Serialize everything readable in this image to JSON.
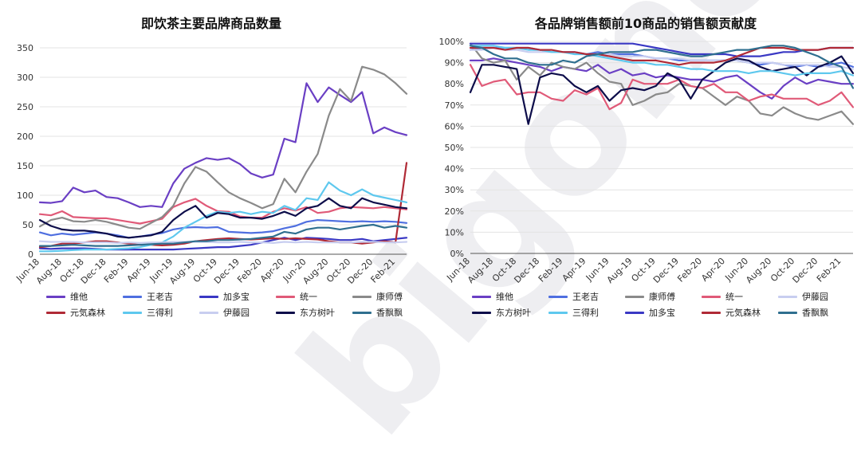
{
  "watermark": "bigone",
  "chart_data": [
    {
      "type": "line",
      "title": "即饮茶主要品牌商品数量",
      "x": [
        "Jun-18",
        "Jul-18",
        "Aug-18",
        "Sep-18",
        "Oct-18",
        "Nov-18",
        "Dec-18",
        "Jan-19",
        "Feb-19",
        "Mar-19",
        "Apr-19",
        "May-19",
        "Jun-19",
        "Jul-19",
        "Aug-19",
        "Sep-19",
        "Oct-19",
        "Nov-19",
        "Dec-19",
        "Jan-20",
        "Feb-20",
        "Mar-20",
        "Apr-20",
        "May-20",
        "Jun-20",
        "Jul-20",
        "Aug-20",
        "Sep-20",
        "Oct-20",
        "Nov-20",
        "Dec-20",
        "Jan-21",
        "Feb-21",
        "Mar-21"
      ],
      "x_tick_labels": [
        "Jun-18",
        "Aug-18",
        "Oct-18",
        "Dec-18",
        "Feb-19",
        "Apr-19",
        "Jun-19",
        "Aug-19",
        "Oct-19",
        "Dec-19",
        "Feb-20",
        "Apr-20",
        "Jun-20",
        "Aug-20",
        "Oct-20",
        "Dec-20",
        "Feb-21"
      ],
      "ylim": [
        0,
        350
      ],
      "y_ticks": [
        0,
        50,
        100,
        150,
        200,
        250,
        300,
        350
      ],
      "xlabel": "",
      "ylabel": "",
      "series": [
        {
          "name": "维他",
          "color": "#6a3fc4",
          "values": [
            88,
            87,
            90,
            113,
            105,
            108,
            97,
            95,
            88,
            80,
            82,
            80,
            120,
            145,
            155,
            163,
            160,
            163,
            153,
            137,
            130,
            135,
            196,
            190,
            290,
            258,
            283,
            270,
            258,
            275,
            205,
            215,
            207,
            202
          ]
        },
        {
          "name": "王老吉",
          "color": "#4f6fe0",
          "values": [
            37,
            32,
            35,
            33,
            35,
            37,
            35,
            32,
            28,
            30,
            33,
            36,
            42,
            45,
            46,
            45,
            46,
            38,
            37,
            36,
            37,
            39,
            44,
            48,
            55,
            58,
            57,
            56,
            55,
            56,
            55,
            56,
            55,
            53
          ]
        },
        {
          "name": "加多宝",
          "color": "#3a38c4",
          "values": [
            10,
            9,
            10,
            10,
            10,
            9,
            8,
            8,
            8,
            8,
            8,
            8,
            8,
            9,
            10,
            11,
            12,
            12,
            14,
            16,
            20,
            24,
            28,
            24,
            28,
            27,
            26,
            24,
            24,
            26,
            22,
            24,
            26,
            28
          ]
        },
        {
          "name": "统一",
          "color": "#e05a78",
          "values": [
            68,
            66,
            73,
            63,
            62,
            61,
            61,
            58,
            55,
            52,
            56,
            60,
            80,
            88,
            94,
            82,
            73,
            72,
            64,
            62,
            62,
            72,
            78,
            74,
            80,
            70,
            72,
            78,
            80,
            79,
            78,
            80,
            78,
            76
          ]
        },
        {
          "name": "康师傅",
          "color": "#8a8a8a",
          "values": [
            47,
            58,
            62,
            56,
            55,
            58,
            55,
            50,
            45,
            43,
            53,
            63,
            82,
            120,
            148,
            140,
            122,
            105,
            95,
            87,
            78,
            85,
            128,
            105,
            140,
            170,
            235,
            280,
            260,
            318,
            313,
            305,
            290,
            272
          ]
        },
        {
          "name": "元気森林",
          "color": "#b02a36",
          "values": [
            12,
            14,
            18,
            18,
            20,
            22,
            22,
            20,
            18,
            16,
            16,
            15,
            16,
            18,
            22,
            24,
            26,
            27,
            26,
            25,
            26,
            27,
            26,
            27,
            26,
            25,
            22,
            20,
            20,
            18,
            20,
            22,
            20,
            155
          ]
        },
        {
          "name": "三得利",
          "color": "#5ec8ee",
          "values": [
            5,
            5,
            6,
            7,
            8,
            8,
            8,
            9,
            10,
            12,
            16,
            20,
            30,
            45,
            55,
            65,
            72,
            70,
            72,
            68,
            72,
            70,
            82,
            75,
            95,
            92,
            122,
            108,
            100,
            110,
            100,
            96,
            92,
            88
          ]
        },
        {
          "name": "伊藤园",
          "color": "#c8cef0",
          "values": [
            22,
            21,
            21,
            21,
            20,
            20,
            20,
            19,
            20,
            19,
            20,
            20,
            21,
            21,
            21,
            21,
            20,
            20,
            21,
            20,
            20,
            19,
            21,
            20,
            21,
            20,
            20,
            20,
            20,
            21,
            21,
            20,
            20,
            21
          ]
        },
        {
          "name": "东方树叶",
          "color": "#0d0d4a",
          "values": [
            58,
            48,
            42,
            40,
            40,
            38,
            35,
            30,
            28,
            30,
            32,
            38,
            58,
            72,
            82,
            62,
            70,
            68,
            62,
            62,
            60,
            65,
            72,
            65,
            78,
            82,
            95,
            82,
            78,
            95,
            88,
            84,
            80,
            78
          ]
        },
        {
          "name": "香飘飘",
          "color": "#2f6f8f",
          "values": [
            14,
            14,
            15,
            16,
            15,
            14,
            14,
            14,
            15,
            16,
            17,
            18,
            18,
            20,
            22,
            22,
            24,
            24,
            25,
            26,
            28,
            30,
            38,
            35,
            42,
            45,
            45,
            42,
            45,
            48,
            50,
            45,
            48,
            45
          ]
        }
      ],
      "legend": {
        "placement": "bottom",
        "columns": 5
      }
    },
    {
      "type": "line",
      "title": "各品牌销售额前10商品的销售额贡献度",
      "x": [
        "Jun-18",
        "Jul-18",
        "Aug-18",
        "Sep-18",
        "Oct-18",
        "Nov-18",
        "Dec-18",
        "Jan-19",
        "Feb-19",
        "Mar-19",
        "Apr-19",
        "May-19",
        "Jun-19",
        "Jul-19",
        "Aug-19",
        "Sep-19",
        "Oct-19",
        "Nov-19",
        "Dec-19",
        "Jan-20",
        "Feb-20",
        "Mar-20",
        "Apr-20",
        "May-20",
        "Jun-20",
        "Jul-20",
        "Aug-20",
        "Sep-20",
        "Oct-20",
        "Nov-20",
        "Dec-20",
        "Jan-21",
        "Feb-21",
        "Mar-21"
      ],
      "x_tick_labels": [
        "Jun-18",
        "Aug-18",
        "Oct-18",
        "Dec-18",
        "Feb-19",
        "Apr-19",
        "Jun-19",
        "Aug-19",
        "Oct-19",
        "Dec-19",
        "Feb-20",
        "Apr-20",
        "Jun-20",
        "Aug-20",
        "Oct-20",
        "Dec-20",
        "Feb-21"
      ],
      "ylim": [
        0,
        100
      ],
      "y_ticks": [
        "0%",
        "10%",
        "20%",
        "30%",
        "40%",
        "50%",
        "60%",
        "70%",
        "80%",
        "90%",
        "100%"
      ],
      "xlabel": "",
      "ylabel": "",
      "series": [
        {
          "name": "维他",
          "color": "#6a3fc4",
          "values": [
            91,
            91,
            92,
            91,
            90,
            89,
            88,
            86,
            88,
            87,
            86,
            89,
            85,
            87,
            84,
            85,
            83,
            84,
            83,
            82,
            82,
            81,
            83,
            84,
            80,
            76,
            73,
            79,
            83,
            80,
            82,
            81,
            80,
            80
          ]
        },
        {
          "name": "王老吉",
          "color": "#4f6fe0",
          "values": [
            96,
            97,
            97,
            97,
            97,
            97,
            96,
            95,
            95,
            95,
            94,
            95,
            94,
            94,
            94,
            93,
            92,
            92,
            91,
            91,
            91,
            91,
            91,
            91,
            90,
            89,
            90,
            89,
            88,
            89,
            88,
            89,
            90,
            88
          ]
        },
        {
          "name": "康师傅",
          "color": "#8a8a8a",
          "values": [
            99,
            92,
            90,
            91,
            82,
            88,
            84,
            90,
            88,
            87,
            90,
            85,
            81,
            80,
            70,
            72,
            75,
            76,
            80,
            79,
            78,
            74,
            70,
            74,
            72,
            66,
            65,
            69,
            66,
            64,
            63,
            65,
            67,
            61
          ]
        },
        {
          "name": "统一",
          "color": "#e05a78",
          "values": [
            89,
            79,
            81,
            82,
            75,
            76,
            76,
            73,
            72,
            77,
            75,
            78,
            68,
            71,
            82,
            80,
            80,
            80,
            82,
            79,
            78,
            80,
            76,
            76,
            72,
            74,
            75,
            73,
            73,
            73,
            70,
            72,
            76,
            69
          ]
        },
        {
          "name": "伊藤园",
          "color": "#c8cef0",
          "values": [
            96,
            96,
            97,
            96,
            96,
            95,
            95,
            95,
            95,
            94,
            94,
            94,
            94,
            93,
            93,
            93,
            92,
            92,
            92,
            91,
            91,
            91,
            91,
            91,
            90,
            90,
            90,
            89,
            89,
            89,
            89,
            88,
            88,
            87
          ]
        },
        {
          "name": "东方树叶",
          "color": "#0d0d4a",
          "values": [
            76,
            89,
            89,
            88,
            87,
            61,
            83,
            85,
            84,
            79,
            76,
            79,
            72,
            77,
            78,
            77,
            79,
            85,
            82,
            73,
            82,
            86,
            90,
            92,
            91,
            88,
            86,
            87,
            88,
            84,
            88,
            90,
            93,
            85
          ]
        },
        {
          "name": "三得利",
          "color": "#5ec8ee",
          "values": [
            98,
            98,
            98,
            97,
            97,
            96,
            96,
            95,
            95,
            94,
            94,
            93,
            92,
            91,
            90,
            90,
            89,
            89,
            88,
            87,
            87,
            86,
            86,
            86,
            85,
            86,
            86,
            85,
            84,
            85,
            85,
            85,
            86,
            84
          ]
        },
        {
          "name": "加多宝",
          "color": "#3a38c4",
          "values": [
            99,
            99,
            99,
            99,
            99,
            99,
            99,
            99,
            99,
            99,
            99,
            99,
            99,
            99,
            99,
            98,
            97,
            96,
            95,
            94,
            94,
            94,
            94,
            93,
            93,
            93,
            94,
            95,
            95,
            96,
            96,
            97,
            97,
            97
          ]
        },
        {
          "name": "元気森林",
          "color": "#b02a36",
          "values": [
            97,
            97,
            97,
            96,
            97,
            97,
            96,
            96,
            95,
            95,
            94,
            94,
            93,
            92,
            91,
            91,
            91,
            90,
            89,
            90,
            90,
            90,
            91,
            93,
            95,
            97,
            97,
            97,
            96,
            96,
            96,
            97,
            97,
            97
          ]
        },
        {
          "name": "香飘飘",
          "color": "#2f6f8f",
          "values": [
            98,
            97,
            94,
            92,
            92,
            90,
            89,
            89,
            91,
            90,
            93,
            94,
            95,
            95,
            95,
            96,
            96,
            95,
            94,
            93,
            93,
            94,
            95,
            96,
            96,
            97,
            98,
            98,
            97,
            95,
            93,
            90,
            88,
            78
          ]
        }
      ],
      "legend": {
        "placement": "bottom",
        "columns": 5
      }
    }
  ]
}
